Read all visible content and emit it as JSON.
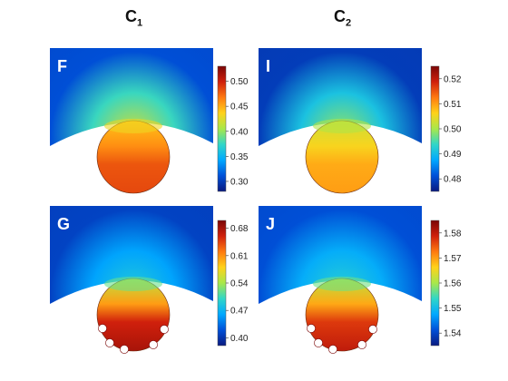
{
  "columns": [
    {
      "label": "C",
      "sub": "1"
    },
    {
      "label": "C",
      "sub": "2"
    }
  ],
  "colormap": {
    "stops": [
      "#0a1a80",
      "#0050d8",
      "#00a8ff",
      "#30d6c8",
      "#a8e84a",
      "#ffd21a",
      "#ff7a10",
      "#d0200c",
      "#7a0606"
    ]
  },
  "chart_data": [
    {
      "type": "heatmap",
      "panel": "F",
      "column": "C1",
      "variant": "tissue-with-spherical-implant",
      "colorbar": {
        "range": [
          0.28,
          0.53
        ],
        "ticks": [
          "0.50",
          "0.45",
          "0.40",
          "0.35",
          "0.30"
        ]
      },
      "field": {
        "top": 0.31,
        "near_sphere": 0.42,
        "sphere": 0.48
      }
    },
    {
      "type": "heatmap",
      "panel": "I",
      "column": "C2",
      "variant": "tissue-with-spherical-implant",
      "colorbar": {
        "range": [
          0.475,
          0.525
        ],
        "ticks": [
          "0.52",
          "0.51",
          "0.50",
          "0.49",
          "0.48"
        ]
      },
      "field": {
        "top": 0.479,
        "near_sphere": 0.499,
        "sphere": 0.509
      }
    },
    {
      "type": "heatmap",
      "panel": "G",
      "column": "C1",
      "variant": "tissue-with-implant-and-pores",
      "colorbar": {
        "range": [
          0.38,
          0.7
        ],
        "ticks": [
          "0.68",
          "0.61",
          "0.54",
          "0.47",
          "0.40"
        ]
      },
      "field": {
        "top": 0.41,
        "near_sphere": 0.49,
        "sphere": 0.66
      }
    },
    {
      "type": "heatmap",
      "panel": "J",
      "column": "C2",
      "variant": "tissue-with-implant-and-pores",
      "colorbar": {
        "range": [
          1.535,
          1.585
        ],
        "ticks": [
          "1.58",
          "1.57",
          "1.56",
          "1.55",
          "1.54"
        ]
      },
      "field": {
        "top": 1.541,
        "near_sphere": 1.553,
        "sphere": 1.577
      }
    }
  ]
}
